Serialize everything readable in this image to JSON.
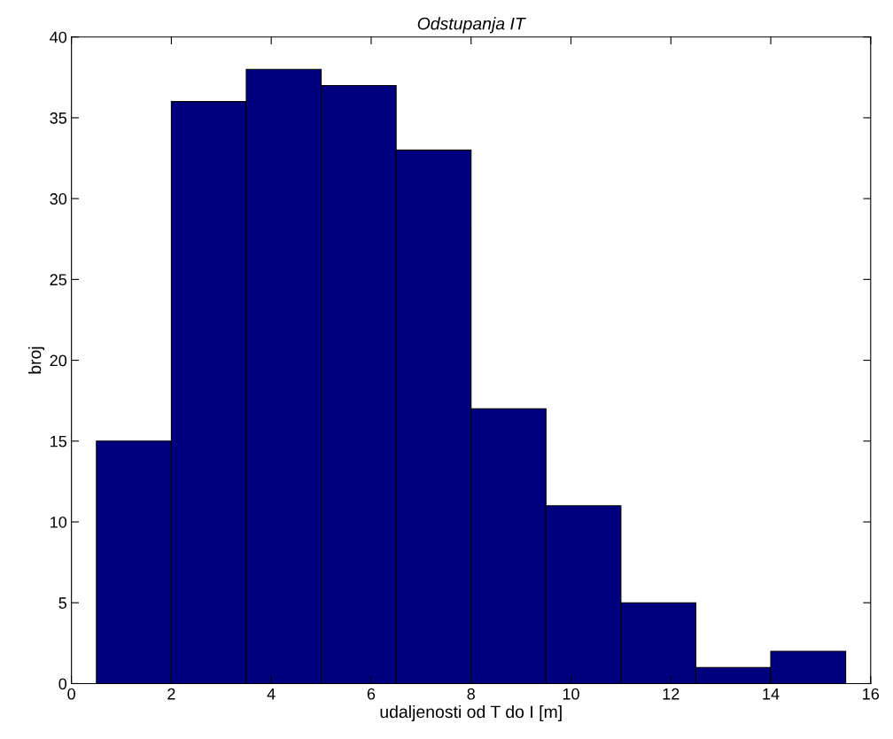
{
  "chart_data": {
    "type": "histogram",
    "title": "Odstupanja IT",
    "xlabel": "udaljenosti od T do I [m]",
    "ylabel": "broj",
    "bins": [
      0.5,
      2.0,
      3.5,
      5.0,
      6.5,
      8.0,
      9.5,
      11.0,
      12.5,
      14.0,
      15.5
    ],
    "values": [
      15,
      36,
      38,
      37,
      33,
      17,
      11,
      5,
      1,
      2
    ],
    "color": "#00007f",
    "xlim": [
      0,
      16
    ],
    "xticks": [
      0,
      2,
      4,
      6,
      8,
      10,
      12,
      14,
      16
    ],
    "ylim": [
      0,
      40
    ],
    "yticks": [
      0,
      5,
      10,
      15,
      20,
      25,
      30,
      35,
      40
    ],
    "grid": false
  }
}
